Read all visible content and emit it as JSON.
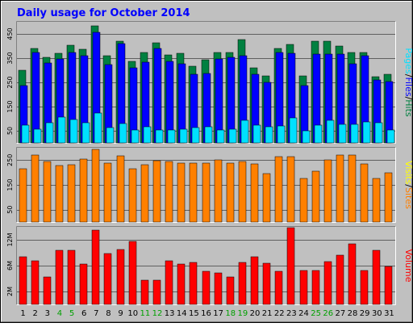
{
  "colors": {
    "frame_bg": "#c0c0c0",
    "panel_bg": "#c0c0c0",
    "title": "#0000ff",
    "hits": "#008040",
    "files": "#0000ff",
    "pages": "#00e0ff",
    "visits": "#ff8000",
    "sites": "#ffff00",
    "volume": "#ff0000",
    "weekend_label": "#00a000",
    "day_label": "#000000"
  },
  "chart_data": {
    "type": "bar",
    "title": "Daily usage for October 2014",
    "categories": [
      "1",
      "2",
      "3",
      "4",
      "5",
      "6",
      "7",
      "8",
      "9",
      "10",
      "11",
      "12",
      "13",
      "14",
      "15",
      "16",
      "17",
      "18",
      "19",
      "20",
      "21",
      "22",
      "23",
      "24",
      "25",
      "26",
      "27",
      "28",
      "29",
      "30",
      "31"
    ],
    "weekend_days": [
      "4",
      "5",
      "11",
      "12",
      "18",
      "19",
      "25",
      "26"
    ],
    "panels": [
      {
        "label": {
          "parts": [
            {
              "text": "Pages",
              "color_key": "pages"
            },
            {
              "text": "/",
              "color_key": "day_label"
            },
            {
              "text": "Files",
              "color_key": "files"
            },
            {
              "text": "/",
              "color_key": "day_label"
            },
            {
              "text": "Hits",
              "color_key": "hits"
            }
          ]
        },
        "ylim": [
          0,
          460
        ],
        "ticks": [
          "50",
          "150",
          "250",
          "350",
          "450"
        ],
        "series": [
          {
            "name": "Hits",
            "color_key": "hits",
            "values": [
              275,
              360,
              325,
              340,
              372,
              355,
              445,
              330,
              385,
              310,
              345,
              380,
              335,
              340,
              290,
              317,
              343,
              343,
              392,
              285,
              255,
              360,
              375,
              255,
              385,
              386,
              368,
              342,
              343,
              250,
              260
            ]
          },
          {
            "name": "Files",
            "color_key": "files",
            "values": [
              218,
              345,
              305,
              318,
              345,
              330,
              420,
              298,
              378,
              285,
              307,
              358,
              310,
              300,
              260,
              265,
              318,
              325,
              330,
              260,
              230,
              345,
              340,
              218,
              336,
              338,
              338,
              300,
              330,
              238,
              233
            ]
          },
          {
            "name": "Pages",
            "color_key": "pages",
            "values": [
              68,
              52,
              78,
              98,
              88,
              78,
              112,
              58,
              73,
              48,
              60,
              50,
              48,
              53,
              58,
              62,
              50,
              53,
              85,
              68,
              60,
              63,
              95,
              45,
              67,
              85,
              70,
              72,
              80,
              76,
              50
            ]
          }
        ]
      },
      {
        "label": {
          "parts": [
            {
              "text": "Visits",
              "color_key": "sites"
            },
            {
              "text": "/",
              "color_key": "day_label"
            },
            {
              "text": "Sites",
              "color_key": "visits"
            }
          ]
        },
        "ylim": [
          0,
          275
        ],
        "ticks": [
          "50",
          "150",
          "250"
        ],
        "series": [
          {
            "name": "Visits",
            "color_key": "visits",
            "values": [
              197,
              248,
              225,
              208,
              213,
              232,
              270,
              217,
              245,
              198,
              213,
              228,
              225,
              219,
              219,
              218,
              230,
              219,
              225,
              216,
              178,
              243,
              243,
              162,
              187,
              229,
              248,
              248,
              216,
              162,
              182
            ]
          }
        ]
      },
      {
        "label": {
          "parts": [
            {
              "text": "Volume",
              "color_key": "volume"
            }
          ]
        },
        "ylim": [
          0,
          22.5
        ],
        "ticks": [
          "2M",
          "6M",
          "12M"
        ],
        "series": [
          {
            "name": "Volume",
            "color_key": "volume",
            "values": [
              13.8,
              12.7,
              8.0,
              15.6,
              15.7,
              11.8,
              21.5,
              14.8,
              15.9,
              18.3,
              7.1,
              7.1,
              12.6,
              11.7,
              12.1,
              9.6,
              9.2,
              8.0,
              12.3,
              13.8,
              11.9,
              9.5,
              22.3,
              9.8,
              9.8,
              12.4,
              14.3,
              17.6,
              9.8,
              15.6,
              11.1
            ]
          }
        ]
      }
    ]
  }
}
